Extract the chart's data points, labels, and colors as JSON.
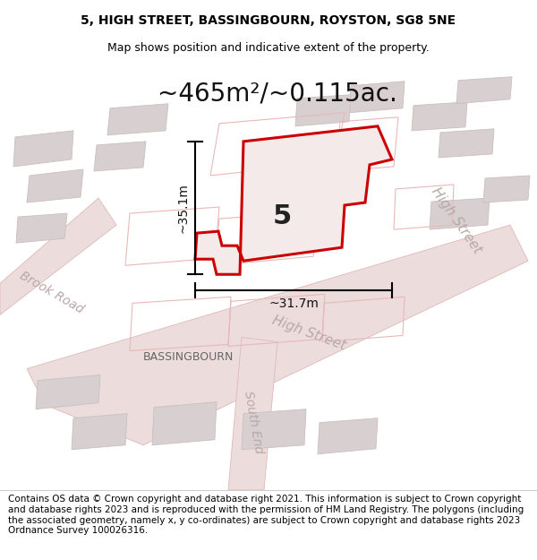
{
  "title_line1": "5, HIGH STREET, BASSINGBOURN, ROYSTON, SG8 5NE",
  "title_line2": "Map shows position and indicative extent of the property.",
  "area_text": "~465m²/~0.115ac.",
  "label_number": "5",
  "dim_vertical": "~35.1m",
  "dim_horizontal": "~31.7m",
  "footer_text": "Contains OS data © Crown copyright and database right 2021. This information is subject to Crown copyright and database rights 2023 and is reproduced with the permission of HM Land Registry. The polygons (including the associated geometry, namely x, y co-ordinates) are subject to Crown copyright and database rights 2023 Ordnance Survey 100026316.",
  "map_bg": "#f7f4f4",
  "road_fill": "#ecdcdc",
  "road_edge": "#e0b8b8",
  "building_fill": "#d8d0d0",
  "building_edge": "#c8c0c0",
  "outline_edge": "#e8b8b8",
  "plot_color": "#cc0000",
  "plot_fill": "#f5eaea",
  "street_label_color": "#b8a8a8",
  "street_label_color2": "#555555",
  "bassingbourn_color": "#666666",
  "title_fontsize": 10,
  "area_fontsize": 20,
  "label_fontsize": 22,
  "dim_fontsize": 10,
  "footer_fontsize": 7.5,
  "street_fontsize": 11,
  "bassingbourn_fontsize": 9
}
